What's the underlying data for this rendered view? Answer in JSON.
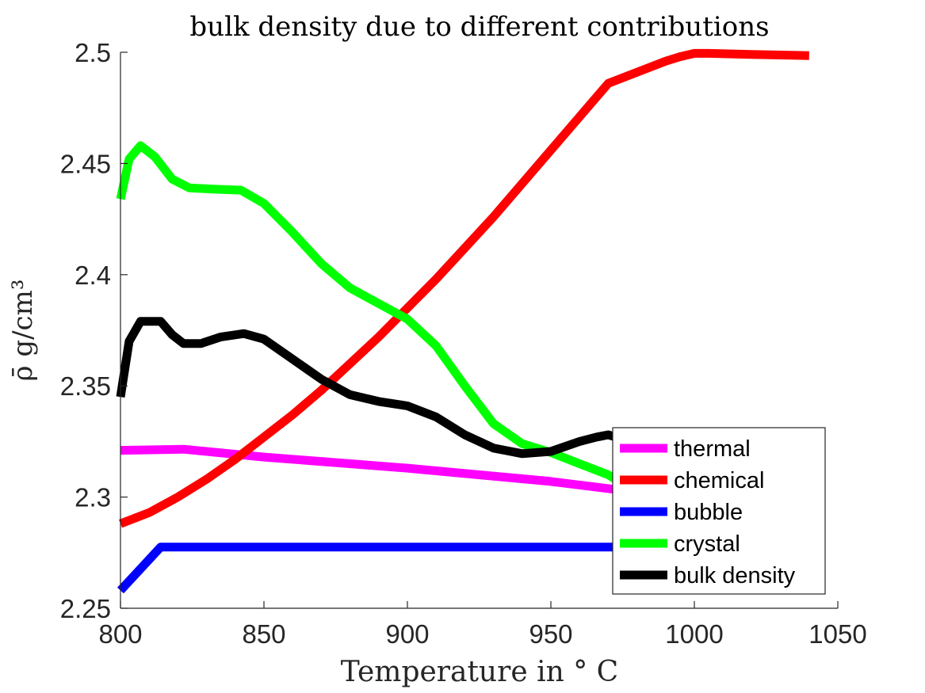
{
  "chart_data": {
    "type": "line",
    "title": "bulk density due to different contributions",
    "xlabel": "Temperature in ° C",
    "ylabel": "ρ̄ g/cm³",
    "xlim": [
      800,
      1050
    ],
    "ylim": [
      2.25,
      2.5
    ],
    "xticks": [
      800,
      850,
      900,
      950,
      1000,
      1050
    ],
    "yticks": [
      2.25,
      2.3,
      2.35,
      2.4,
      2.45,
      2.5
    ],
    "xtick_labels": [
      "800",
      "850",
      "900",
      "950",
      "1000",
      "1050"
    ],
    "ytick_labels": [
      "2.25",
      "2.3",
      "2.35",
      "2.4",
      "2.45",
      "2.5"
    ],
    "grid": false,
    "legend_position": "bottom-right",
    "series": [
      {
        "name": "thermal",
        "color": "#ff00ff",
        "x": [
          800,
          822,
          850,
          900,
          950,
          975
        ],
        "y": [
          2.321,
          2.3215,
          2.318,
          2.313,
          2.307,
          2.303
        ]
      },
      {
        "name": "chemical",
        "color": "#ff0000",
        "x": [
          800,
          810,
          820,
          830,
          840,
          850,
          860,
          870,
          880,
          890,
          900,
          910,
          920,
          930,
          940,
          950,
          960,
          970,
          980,
          990,
          995,
          1000,
          1005,
          1020,
          1040
        ],
        "y": [
          2.288,
          2.293,
          2.3,
          2.308,
          2.317,
          2.327,
          2.337,
          2.348,
          2.36,
          2.372,
          2.385,
          2.398,
          2.412,
          2.426,
          2.441,
          2.456,
          2.471,
          2.486,
          2.491,
          2.496,
          2.498,
          2.4995,
          2.4995,
          2.499,
          2.4985
        ]
      },
      {
        "name": "bubble",
        "color": "#0000ff",
        "x": [
          800,
          814,
          850,
          900,
          950,
          975
        ],
        "y": [
          2.258,
          2.2775,
          2.2775,
          2.2775,
          2.2775,
          2.2775
        ]
      },
      {
        "name": "crystal",
        "color": "#00ff00",
        "x": [
          800,
          803,
          807,
          812,
          818,
          824,
          832,
          842,
          850,
          860,
          870,
          880,
          890,
          900,
          910,
          920,
          930,
          940,
          950,
          960,
          970,
          975
        ],
        "y": [
          2.434,
          2.452,
          2.458,
          2.453,
          2.443,
          2.439,
          2.4385,
          2.438,
          2.432,
          2.419,
          2.405,
          2.394,
          2.387,
          2.38,
          2.368,
          2.35,
          2.333,
          2.324,
          2.32,
          2.315,
          2.31,
          2.306
        ]
      },
      {
        "name": "bulk density",
        "color": "#000000",
        "x": [
          800,
          803,
          807,
          814,
          818,
          822,
          828,
          835,
          843,
          850,
          860,
          870,
          880,
          890,
          900,
          910,
          920,
          930,
          940,
          950,
          960,
          966,
          970,
          975
        ],
        "y": [
          2.345,
          2.37,
          2.379,
          2.379,
          2.373,
          2.369,
          2.369,
          2.372,
          2.3735,
          2.371,
          2.362,
          2.353,
          2.346,
          2.343,
          2.341,
          2.336,
          2.328,
          2.322,
          2.3195,
          2.3205,
          2.325,
          2.327,
          2.328,
          2.326
        ]
      }
    ]
  }
}
